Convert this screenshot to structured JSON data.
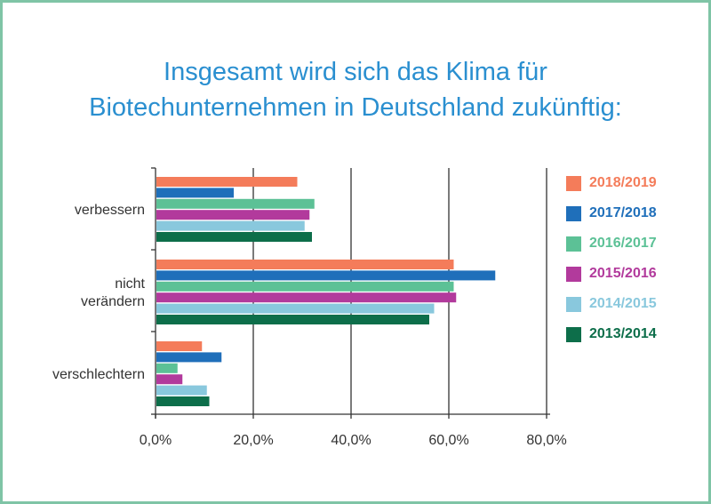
{
  "title_lines": [
    "Insgesamt wird sich das Klima für",
    "Biotechunternehmen in Deutschland zukünftig:"
  ],
  "chart_data": {
    "type": "bar",
    "orientation": "horizontal",
    "categories": [
      "verbessern",
      "nicht verändern",
      "verschlechtern"
    ],
    "category_label_lines": [
      [
        "verbessern"
      ],
      [
        "nicht",
        "verändern"
      ],
      [
        "verschlechtern"
      ]
    ],
    "series": [
      {
        "name": "2018/2019",
        "color": "#f47c5a",
        "values": [
          29.0,
          61.0,
          9.5
        ]
      },
      {
        "name": "2017/2018",
        "color": "#1f6fba",
        "values": [
          16.0,
          69.5,
          13.5
        ]
      },
      {
        "name": "2016/2017",
        "color": "#5cc196",
        "values": [
          32.5,
          61.0,
          4.5
        ]
      },
      {
        "name": "2015/2016",
        "color": "#b23a9c",
        "values": [
          31.5,
          61.5,
          5.5
        ]
      },
      {
        "name": "2014/2015",
        "color": "#89c8dd",
        "values": [
          30.5,
          57.0,
          10.5
        ]
      },
      {
        "name": "2013/2014",
        "color": "#0d6e4a",
        "values": [
          32.0,
          56.0,
          11.0
        ]
      }
    ],
    "xlim": [
      0,
      80
    ],
    "x_ticks": [
      0,
      20,
      40,
      60,
      80
    ],
    "x_tick_labels": [
      "0,0%",
      "20,0%",
      "40,0%",
      "60,0%",
      "80,0%"
    ],
    "grid": true,
    "legend_position": "right"
  }
}
